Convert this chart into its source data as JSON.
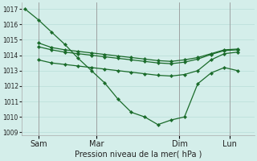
{
  "background_color": "#d4eeea",
  "grid_color": "#b8ddd8",
  "line_color": "#1a6b2a",
  "xlabel": "Pression niveau de la mer( hPa )",
  "ylim": [
    1008.8,
    1017.4
  ],
  "yticks": [
    1009,
    1010,
    1011,
    1012,
    1013,
    1014,
    1015,
    1016,
    1017
  ],
  "xlim": [
    0,
    14.0
  ],
  "xtick_positions": [
    1.0,
    4.5,
    9.5,
    12.5
  ],
  "xtick_labels": [
    "Sam",
    "Mar",
    "Dim",
    "Lun"
  ],
  "vline_positions": [
    1.0,
    4.5,
    9.5,
    12.5
  ],
  "line1_x": [
    0.2,
    1.0,
    1.8,
    2.6,
    3.4,
    4.2,
    5.0,
    5.8,
    6.6,
    7.4,
    8.2,
    9.0,
    9.8,
    10.6,
    11.4,
    12.2,
    13.0
  ],
  "line1_y": [
    1017.0,
    1016.3,
    1015.5,
    1014.7,
    1013.8,
    1013.0,
    1012.2,
    1011.15,
    1010.3,
    1010.0,
    1009.5,
    1009.8,
    1010.0,
    1012.15,
    1012.85,
    1013.2,
    1013.0
  ],
  "line2_x": [
    1.0,
    1.8,
    2.6,
    3.4,
    4.2,
    5.0,
    5.8,
    6.6,
    7.4,
    8.2,
    9.0,
    9.8,
    10.6,
    11.4,
    12.2,
    13.0
  ],
  "line2_y": [
    1014.8,
    1014.5,
    1014.35,
    1014.25,
    1014.15,
    1014.05,
    1013.95,
    1013.85,
    1013.75,
    1013.65,
    1013.6,
    1013.7,
    1013.85,
    1014.1,
    1014.35,
    1014.4
  ],
  "line3_x": [
    1.0,
    1.8,
    2.6,
    3.4,
    4.2,
    5.0,
    5.8,
    6.6,
    7.4,
    8.2,
    9.0,
    9.8,
    10.6,
    11.4,
    12.2,
    13.0
  ],
  "line3_y": [
    1014.55,
    1014.35,
    1014.2,
    1014.1,
    1014.0,
    1013.9,
    1013.8,
    1013.7,
    1013.6,
    1013.5,
    1013.45,
    1013.55,
    1013.75,
    1014.05,
    1014.3,
    1014.35
  ],
  "line4_x": [
    1.0,
    1.8,
    2.6,
    3.4,
    4.2,
    5.0,
    5.8,
    6.6,
    7.4,
    8.2,
    9.0,
    9.8,
    10.6,
    11.4,
    12.2,
    13.0
  ],
  "line4_y": [
    1013.7,
    1013.5,
    1013.4,
    1013.3,
    1013.2,
    1013.1,
    1013.0,
    1012.9,
    1012.8,
    1012.7,
    1012.65,
    1012.75,
    1013.0,
    1013.7,
    1014.1,
    1014.2
  ]
}
